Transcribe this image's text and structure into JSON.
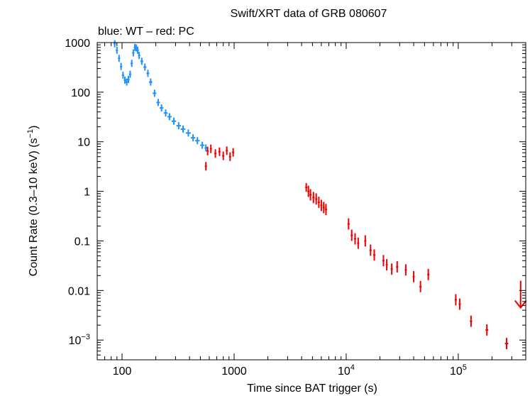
{
  "chart_data": {
    "type": "scatter",
    "title": "Swift/XRT data of GRB 080607",
    "subtitle": "blue: WT – red: PC",
    "xlabel": "Time since BAT trigger (s)",
    "ylabel_main": "Count Rate (0.3–10 keV) (s",
    "ylabel_sup": "−1",
    "ylabel_close": ")",
    "x_scale": "log",
    "y_scale": "log",
    "xlim": [
      60,
      400000
    ],
    "ylim": [
      0.0004,
      1000
    ],
    "grid": false,
    "x_ticks": [
      {
        "value": 100,
        "base": "100",
        "exp": ""
      },
      {
        "value": 1000,
        "base": "1000",
        "exp": ""
      },
      {
        "value": 10000,
        "base": "10",
        "exp": "4"
      },
      {
        "value": 100000,
        "base": "10",
        "exp": "5"
      }
    ],
    "y_ticks": [
      {
        "value": 1000,
        "base": "1000",
        "exp": ""
      },
      {
        "value": 100,
        "base": "100",
        "exp": ""
      },
      {
        "value": 10,
        "base": "10",
        "exp": ""
      },
      {
        "value": 1,
        "base": "1",
        "exp": ""
      },
      {
        "value": 0.1,
        "base": "0.1",
        "exp": ""
      },
      {
        "value": 0.01,
        "base": "0.01",
        "exp": ""
      },
      {
        "value": 0.001,
        "base": "10",
        "exp": "−3"
      }
    ],
    "series": [
      {
        "mode": "WT",
        "color": "#1e90ff",
        "points": [
          [
            86,
            950
          ],
          [
            90,
            700
          ],
          [
            94,
            480
          ],
          [
            98,
            330
          ],
          [
            102,
            220
          ],
          [
            106,
            175
          ],
          [
            110,
            160
          ],
          [
            114,
            180
          ],
          [
            118,
            230
          ],
          [
            122,
            380
          ],
          [
            126,
            620
          ],
          [
            130,
            800
          ],
          [
            134,
            780
          ],
          [
            138,
            700
          ],
          [
            142,
            550
          ],
          [
            150,
            420
          ],
          [
            160,
            320
          ],
          [
            170,
            240
          ],
          [
            180,
            160
          ],
          [
            195,
            95
          ],
          [
            210,
            62
          ],
          [
            225,
            48
          ],
          [
            245,
            38
          ],
          [
            265,
            32
          ],
          [
            290,
            26
          ],
          [
            320,
            21
          ],
          [
            350,
            18
          ],
          [
            390,
            15
          ],
          [
            430,
            12
          ],
          [
            470,
            10.5
          ],
          [
            520,
            8.5
          ],
          [
            560,
            7.5
          ]
        ]
      },
      {
        "mode": "PC",
        "color": "#ee0000",
        "points": [
          [
            560,
            3.2
          ],
          [
            580,
            6.5
          ],
          [
            620,
            7.2
          ],
          [
            680,
            5.8
          ],
          [
            740,
            6.3
          ],
          [
            800,
            5.2
          ],
          [
            860,
            6.6
          ],
          [
            920,
            5.0
          ],
          [
            980,
            6.1
          ],
          [
            4400,
            1.2
          ],
          [
            4600,
            1.0
          ],
          [
            4800,
            0.85
          ],
          [
            5100,
            0.75
          ],
          [
            5400,
            0.7
          ],
          [
            5700,
            0.6
          ],
          [
            6000,
            0.52
          ],
          [
            6300,
            0.47
          ],
          [
            6600,
            0.43
          ],
          [
            10500,
            0.22
          ],
          [
            11200,
            0.13
          ],
          [
            12000,
            0.11
          ],
          [
            12800,
            0.09
          ],
          [
            14800,
            0.1
          ],
          [
            16500,
            0.065
          ],
          [
            17800,
            0.052
          ],
          [
            21500,
            0.04
          ],
          [
            23000,
            0.033
          ],
          [
            25500,
            0.027
          ],
          [
            28500,
            0.03
          ],
          [
            34000,
            0.026
          ],
          [
            40000,
            0.019
          ],
          [
            46000,
            0.012
          ],
          [
            54000,
            0.021
          ],
          [
            95000,
            0.0065
          ],
          [
            103000,
            0.0053
          ],
          [
            130000,
            0.0024
          ],
          [
            180000,
            0.0016
          ],
          [
            270000,
            0.00085
          ]
        ],
        "upper_limits": [
          [
            360000,
            0.0045
          ]
        ]
      }
    ]
  }
}
